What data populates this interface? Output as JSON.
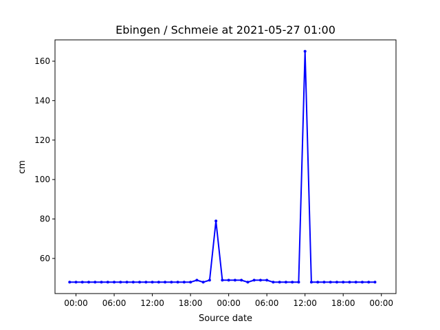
{
  "chart_data": {
    "type": "line",
    "title": "Ebingen / Schmeie at 2021-05-27 01:00",
    "xlabel": "Source date",
    "ylabel": "cm",
    "x_tick_labels": [
      "00:00",
      "06:00",
      "12:00",
      "18:00",
      "00:00",
      "06:00",
      "12:00",
      "18:00",
      "00:00"
    ],
    "x_tick_hours": [
      0,
      6,
      12,
      18,
      24,
      30,
      36,
      42,
      48
    ],
    "xlim_hours": [
      -3.3,
      50.3
    ],
    "yticks": [
      60,
      80,
      100,
      120,
      140,
      160
    ],
    "ylim": [
      42.2,
      170.8
    ],
    "grid": false,
    "series": [
      {
        "color": "#0000ff",
        "x_hours": [
          -1,
          0,
          1,
          2,
          3,
          4,
          5,
          6,
          7,
          8,
          9,
          10,
          11,
          12,
          13,
          14,
          15,
          16,
          17,
          18,
          19,
          20,
          21,
          22,
          23,
          24,
          25,
          26,
          27,
          28,
          29,
          30,
          31,
          32,
          33,
          34,
          35,
          36,
          37,
          38,
          39,
          40,
          41,
          42,
          43,
          44,
          45,
          46,
          47
        ],
        "values": [
          48,
          48,
          48,
          48,
          48,
          48,
          48,
          48,
          48,
          48,
          48,
          48,
          48,
          48,
          48,
          48,
          48,
          48,
          48,
          48,
          49,
          48,
          49,
          79,
          49,
          49,
          49,
          49,
          48,
          49,
          49,
          49,
          48,
          48,
          48,
          48,
          48,
          165,
          48,
          48,
          48,
          48,
          48,
          48,
          48,
          48,
          48,
          48,
          48
        ]
      }
    ]
  }
}
